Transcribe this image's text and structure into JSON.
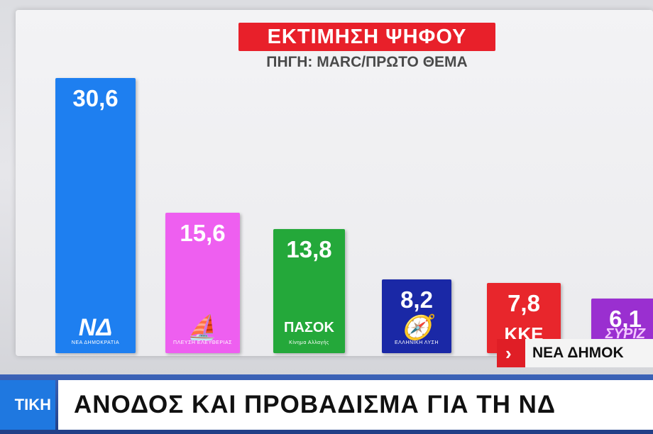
{
  "chart_data": {
    "type": "bar",
    "title": "ΕΚΤΙΜΗΣΗ ΨΗΦΟΥ",
    "subtitle": "ΠΗΓΗ: MARC/ΠΡΩΤΟ ΘΕΜΑ",
    "categories": [
      "ΝΔ",
      "ΠΛΕΥΣΗ ΕΛΕΥΘΕΡΙΑΣ",
      "ΠΑΣΟΚ",
      "ΕΛΛΗΝΙΚΗ ΛΥΣΗ",
      "ΚΚΕ",
      "ΣΥΡΙΖΑ"
    ],
    "values": [
      30.6,
      15.6,
      13.8,
      8.2,
      7.8,
      6.1
    ],
    "value_labels": [
      "30,6",
      "15,6",
      "13,8",
      "8,2",
      "7,8",
      "6,1"
    ],
    "colors": [
      "#1e7ff0",
      "#ee5ff0",
      "#24a83a",
      "#1a28a6",
      "#e8262c",
      "#9a2fd0"
    ],
    "logos": [
      {
        "icon": "nd-logo",
        "big": "ΝΔ",
        "small": "ΝΕΑ ΔΗΜΟΚΡΑΤΙΑ"
      },
      {
        "icon": "plefsi-logo",
        "big": "⛵",
        "small": "ΠΛΕΥΣΗ ΕΛΕΥΘΕΡΙΑΣ"
      },
      {
        "icon": "pasok-logo",
        "big": "ΠΑΣΟΚ",
        "small": "Κίνημα Αλλαγής"
      },
      {
        "icon": "elliniki-lysi-logo",
        "big": "🧭",
        "small": "ΕΛΛΗΝΙΚΗ ΛΥΣΗ"
      },
      {
        "icon": "kke-logo",
        "big": "ΚΚΕ",
        "small": ""
      },
      {
        "icon": "syriza-logo",
        "big": "ΣΥΡΙΖ",
        "small": ""
      }
    ],
    "ylim": [
      0,
      32
    ],
    "grid": false,
    "legend": "none"
  },
  "banner": {
    "text": "ΝΕΑ ΔΗΜΟΚ"
  },
  "ticker": {
    "label": "ΤΙΚΗ",
    "headline": "ΑΝΟΔΟΣ ΚΑΙ ΠΡΟΒΑΔΙΣΜΑ ΓΙΑ ΤΗ ΝΔ"
  }
}
